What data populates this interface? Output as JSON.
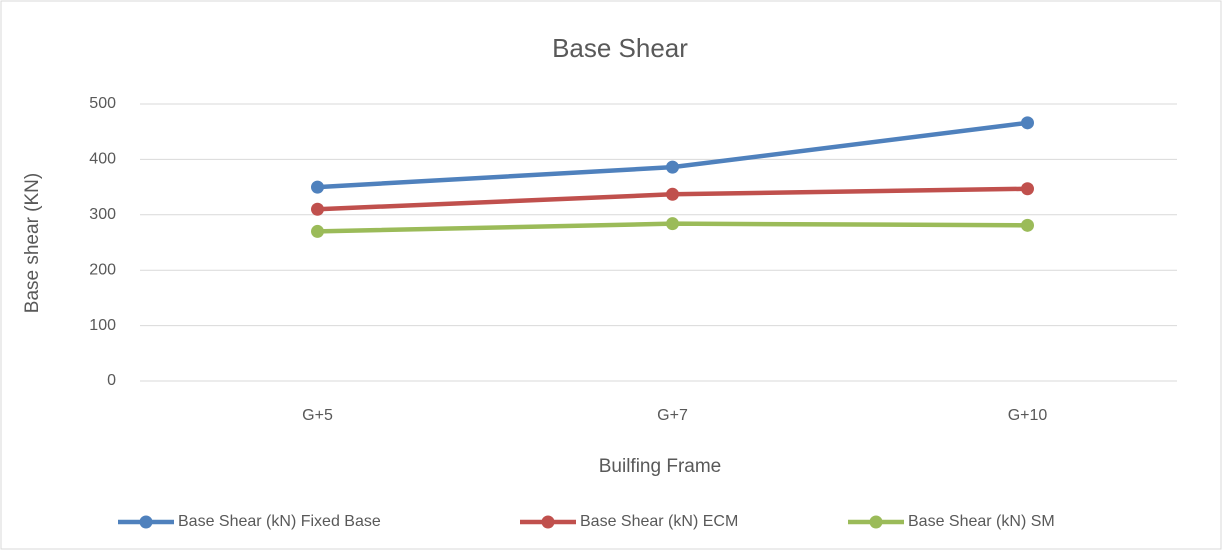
{
  "chart_data": {
    "type": "line",
    "title": "Base Shear",
    "x_label": "Builfing Frame",
    "y_label": "Base shear  (KN)",
    "categories": [
      "G+5",
      "G+7",
      "G+10"
    ],
    "series": [
      {
        "name": "Base Shear (kN) Fixed Base",
        "color": "#4f81bd",
        "values": [
          350,
          386,
          466
        ]
      },
      {
        "name": "Base Shear (kN) ECM",
        "color": "#c0504d",
        "values": [
          310,
          337,
          347
        ]
      },
      {
        "name": "Base Shear (kN) SM",
        "color": "#9bbb59",
        "values": [
          270,
          284,
          281
        ]
      }
    ],
    "ylim": [
      0,
      500
    ],
    "yticks": [
      0,
      100,
      200,
      300,
      400,
      500
    ],
    "grid": true,
    "legend": "bottom"
  }
}
